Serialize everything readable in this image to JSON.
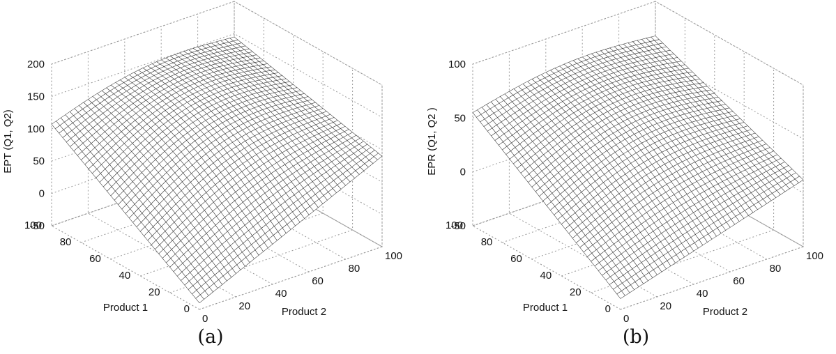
{
  "chart_data": [
    {
      "type": "surface",
      "caption": "(a)",
      "zlabel": "EPT (Q1, Q2)",
      "xlabel": "Product 1",
      "ylabel": "Product 2",
      "xlim": [
        0,
        100
      ],
      "ylim": [
        0,
        100
      ],
      "zlim": [
        -50,
        200
      ],
      "xticks": [
        0,
        20,
        40,
        60,
        80,
        100
      ],
      "yticks": [
        0,
        20,
        40,
        60,
        80,
        100
      ],
      "zticks": [
        -50,
        0,
        50,
        100,
        150,
        200
      ],
      "grid": true,
      "surface_values": {
        "corner_q1_0_q2_0": -40,
        "corner_q1_100_q2_0": 107,
        "corner_q1_0_q2_100": 90,
        "corner_q1_100_q2_100": 145,
        "peak": 150
      }
    },
    {
      "type": "surface",
      "caption": "(b)",
      "zlabel": "EPR (Q1, Q2 )",
      "xlabel": "Product 1",
      "ylabel": "Product 2",
      "xlim": [
        0,
        100
      ],
      "ylim": [
        0,
        100
      ],
      "zlim": [
        -50,
        100
      ],
      "xticks": [
        0,
        20,
        40,
        60,
        80,
        100
      ],
      "yticks": [
        0,
        20,
        40,
        60,
        80,
        100
      ],
      "zticks": [
        -50,
        0,
        50,
        100
      ],
      "grid": true,
      "surface_values": {
        "corner_q1_0_q2_0": -40,
        "corner_q1_100_q2_0": 55,
        "corner_q1_0_q2_100": 12,
        "corner_q1_100_q2_100": 68,
        "peak": 70
      }
    }
  ]
}
